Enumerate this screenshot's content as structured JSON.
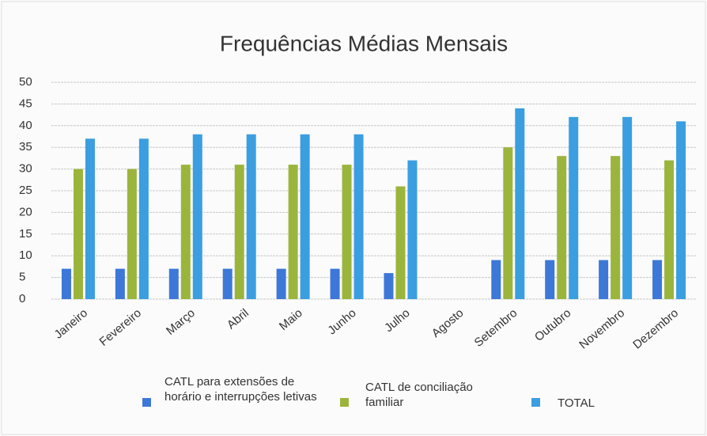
{
  "chart_data": {
    "type": "bar",
    "title": "Frequências Médias Mensais",
    "categories": [
      "Janeiro",
      "Fevereiro",
      "Março",
      "Abril",
      "Maio",
      "Junho",
      "Julho",
      "Agosto",
      "Setembro",
      "Outubro",
      "Novembro",
      "Dezembro"
    ],
    "series": [
      {
        "name": "CATL para extensões de horário e interrupções letivas",
        "color": "#3d78d8",
        "values": [
          7,
          7,
          7,
          7,
          7,
          7,
          6,
          null,
          9,
          9,
          9,
          9
        ]
      },
      {
        "name": "CATL de conciliação familiar",
        "color": "#9bb53c",
        "values": [
          30,
          30,
          31,
          31,
          31,
          31,
          26,
          null,
          35,
          33,
          33,
          32
        ]
      },
      {
        "name": "TOTAL",
        "color": "#3b9ee0",
        "values": [
          37,
          37,
          38,
          38,
          38,
          38,
          32,
          null,
          44,
          42,
          42,
          41
        ]
      }
    ],
    "ylim": [
      0,
      50
    ],
    "yticks": [
      0,
      5,
      10,
      15,
      20,
      25,
      30,
      35,
      40,
      45,
      50
    ],
    "grid": true,
    "legend": "bottom"
  }
}
